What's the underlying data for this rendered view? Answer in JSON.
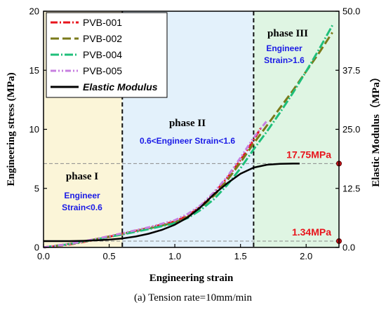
{
  "chart_data": {
    "type": "line",
    "xlabel": "Engineering strain",
    "ylabel": "Engineering stress (MPa)",
    "y2label": "Elastic Modulus（MPa）",
    "xlim": [
      0,
      2.25
    ],
    "ylim": [
      0,
      20
    ],
    "y2lim": [
      0,
      50
    ],
    "x_ticks": [
      "0.0",
      "0.5",
      "1.0",
      "1.5",
      "2.0"
    ],
    "y_ticks": [
      "0",
      "5",
      "10",
      "15",
      "20"
    ],
    "y2_ticks": [
      "0.0",
      "12.5",
      "25.0",
      "37.5",
      "50.0"
    ],
    "phase_boundaries": [
      0.6,
      1.6
    ],
    "phase_colors": [
      "#fbf5d8",
      "#e3f1fb",
      "#dff5e3"
    ],
    "phases": [
      {
        "title": "phase I",
        "note_lines": [
          "Engineer",
          "Strain<0.6"
        ]
      },
      {
        "title": "phase II",
        "note_lines": [
          "0.6<Engineer  Strain<1.6"
        ]
      },
      {
        "title": "phase III",
        "note_lines": [
          "Engineer",
          "Strain>1.6"
        ]
      }
    ],
    "series": [
      {
        "name": "PVB-001",
        "color": "#e8141c",
        "dash": "10,3,2,3",
        "axis": "left",
        "x": [
          0,
          0.2,
          0.4,
          0.6,
          0.8,
          1.0,
          1.1,
          1.2,
          1.3,
          1.4,
          1.5,
          1.6,
          1.66
        ],
        "y": [
          0,
          0.25,
          0.65,
          1.15,
          1.65,
          2.2,
          2.7,
          3.5,
          4.6,
          5.9,
          7.4,
          9.1,
          10.2
        ]
      },
      {
        "name": "PVB-002",
        "color": "#7a7a1a",
        "dash": "12,5",
        "axis": "left",
        "x": [
          0,
          0.2,
          0.4,
          0.6,
          0.8,
          1.0,
          1.1,
          1.2,
          1.3,
          1.4,
          1.5,
          1.6,
          1.7,
          1.8,
          1.9,
          2.0,
          2.1,
          2.2
        ],
        "y": [
          0,
          0.3,
          0.7,
          1.15,
          1.6,
          2.1,
          2.6,
          3.4,
          4.4,
          5.7,
          7.2,
          8.8,
          10.3,
          11.8,
          13.3,
          14.9,
          16.5,
          18.2
        ]
      },
      {
        "name": "PVB-004",
        "color": "#1fbf7a",
        "dash": "12,3,2,3",
        "axis": "left",
        "x": [
          0,
          0.2,
          0.4,
          0.6,
          0.8,
          1.0,
          1.1,
          1.2,
          1.3,
          1.4,
          1.5,
          1.6,
          1.7,
          1.8,
          1.9,
          2.0,
          2.1,
          2.2
        ],
        "y": [
          0,
          0.28,
          0.68,
          1.1,
          1.55,
          2.05,
          2.5,
          3.2,
          4.1,
          5.3,
          6.7,
          8.3,
          9.8,
          11.4,
          13.1,
          14.9,
          16.8,
          18.8
        ]
      },
      {
        "name": "PVB-005",
        "color": "#c77fe0",
        "dash": "8,3,2,3,2,3",
        "axis": "left",
        "x": [
          0,
          0.2,
          0.4,
          0.6,
          0.8,
          1.0,
          1.1,
          1.2,
          1.3,
          1.4,
          1.5,
          1.6,
          1.7
        ],
        "y": [
          0,
          0.3,
          0.72,
          1.2,
          1.7,
          2.3,
          2.85,
          3.6,
          4.7,
          6.0,
          7.6,
          9.3,
          10.7
        ]
      },
      {
        "name": "Elastic Modulus",
        "color": "#000000",
        "dash": "",
        "axis": "right",
        "x": [
          0,
          0.1,
          0.2,
          0.3,
          0.4,
          0.5,
          0.6,
          0.7,
          0.8,
          0.9,
          1.0,
          1.1,
          1.2,
          1.3,
          1.4,
          1.5,
          1.6,
          1.7,
          1.8,
          1.9,
          1.95
        ],
        "y": [
          1.34,
          1.34,
          1.34,
          1.4,
          1.5,
          1.65,
          1.9,
          2.3,
          2.9,
          3.7,
          4.8,
          6.4,
          8.6,
          11.3,
          13.6,
          15.6,
          16.9,
          17.5,
          17.7,
          17.75,
          17.75
        ]
      }
    ],
    "annotations": [
      {
        "text": "17.75MPa",
        "y": 17.75,
        "axis": "right"
      },
      {
        "text": "1.34MPa",
        "y": 1.34,
        "axis": "right"
      }
    ],
    "legend_position": "top-left"
  },
  "caption": "(a)  Tension rate=10mm/min"
}
